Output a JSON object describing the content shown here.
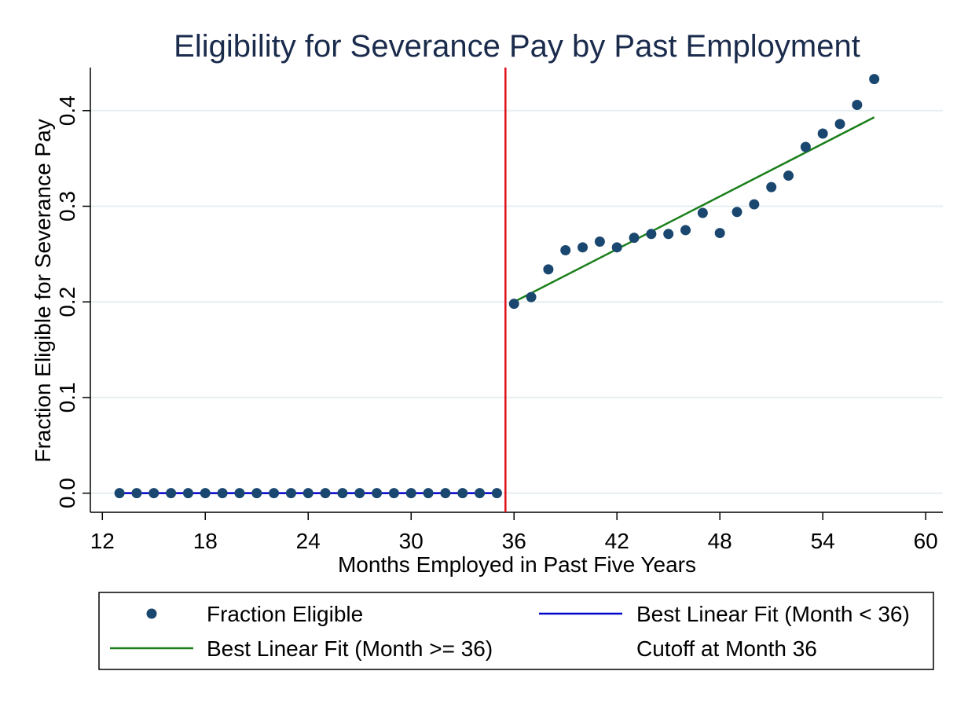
{
  "chart_data": {
    "type": "scatter",
    "title": "Eligibility for Severance Pay by Past Employment",
    "xlabel": "Months Employed in Past Five Years",
    "ylabel": "Fraction Eligible for Severance Pay",
    "xlim": [
      11.3,
      61
    ],
    "ylim": [
      -0.02,
      0.445
    ],
    "xticks": [
      "12",
      "18",
      "24",
      "30",
      "36",
      "42",
      "48",
      "54",
      "60"
    ],
    "yticks": [
      "0.0",
      "0.1",
      "0.2",
      "0.3",
      "0.4"
    ],
    "grid": true,
    "legend_position": "bottom",
    "series": [
      {
        "name": "Fraction Eligible",
        "kind": "scatter",
        "color": "#1a476f",
        "x": [
          13,
          14,
          15,
          16,
          17,
          18,
          19,
          20,
          21,
          22,
          23,
          24,
          25,
          26,
          27,
          28,
          29,
          30,
          31,
          32,
          33,
          34,
          35,
          36,
          37,
          38,
          39,
          40,
          41,
          42,
          43,
          44,
          45,
          46,
          47,
          48,
          49,
          50,
          51,
          52,
          53,
          54,
          55,
          56,
          57
        ],
        "y": [
          0,
          0,
          0,
          0,
          0,
          0,
          0,
          0,
          0,
          0,
          0,
          0,
          0,
          0,
          0,
          0,
          0,
          0,
          0,
          0,
          0,
          0,
          0,
          0.198,
          0.205,
          0.234,
          0.254,
          0.257,
          0.263,
          0.257,
          0.267,
          0.271,
          0.271,
          0.275,
          0.293,
          0.272,
          0.294,
          0.302,
          0.32,
          0.332,
          0.362,
          0.376,
          0.386,
          0.406,
          0.433
        ]
      },
      {
        "name": "Best Linear Fit (Month < 36)",
        "kind": "line",
        "color": "#0000cc",
        "x": [
          13,
          35
        ],
        "y": [
          0,
          0
        ]
      },
      {
        "name": "Best Linear Fit (Month >= 36)",
        "kind": "line",
        "color": "#1a7f1a",
        "x": [
          36,
          57
        ],
        "y": [
          0.2,
          0.393
        ]
      },
      {
        "name": "Cutoff at Month 36",
        "kind": "vline",
        "color": "#e0101a",
        "x": 35.5
      }
    ]
  }
}
